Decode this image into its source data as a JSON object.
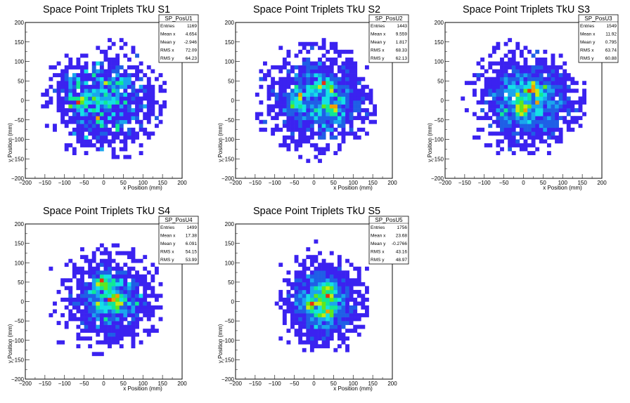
{
  "chart_data": [
    {
      "type": "heatmap",
      "title": "Space Point Triplets TkU S1",
      "xlabel": "x Position (mm)",
      "ylabel": "y Position (mm)",
      "xlim": [
        -200,
        200
      ],
      "ylim": [
        -200,
        200
      ],
      "xticks": [
        "−200",
        "−150",
        "−100",
        "−50",
        "0",
        "50",
        "100",
        "150",
        "200"
      ],
      "yticks": [
        "−200",
        "−150",
        "−100",
        "−50",
        "0",
        "50",
        "100",
        "150",
        "200"
      ],
      "stats": {
        "name": "SP_PosU1",
        "rows": [
          {
            "label": "Entries",
            "value": "1169"
          },
          {
            "label": "Mean x",
            "value": "4.654"
          },
          {
            "label": "Mean y",
            "value": "-2.946"
          },
          {
            "label": "RMS x",
            "value": "72.09"
          },
          {
            "label": "RMS y",
            "value": "64.23"
          }
        ]
      },
      "entries": 1169,
      "mean_x": 4.654,
      "mean_y": -2.946,
      "rms_x": 72.09,
      "rms_y": 64.23,
      "radius_mm": 160,
      "bin_mm": 10,
      "seed": 11,
      "hotspots": [
        [
          -75,
          50
        ],
        [
          40,
          50
        ],
        [
          -50,
          -5
        ],
        [
          -80,
          -5
        ]
      ]
    },
    {
      "type": "heatmap",
      "title": "Space Point Triplets TkU S2",
      "xlabel": "x Position (mm)",
      "ylabel": "y Position (mm)",
      "xlim": [
        -200,
        200
      ],
      "ylim": [
        -200,
        200
      ],
      "xticks": [
        "−200",
        "−150",
        "−100",
        "−50",
        "0",
        "50",
        "100",
        "150",
        "200"
      ],
      "yticks": [
        "−200",
        "−150",
        "−100",
        "−50",
        "0",
        "50",
        "100",
        "150",
        "200"
      ],
      "stats": {
        "name": "SP_PosU2",
        "rows": [
          {
            "label": "Entries",
            "value": "1443"
          },
          {
            "label": "Mean x",
            "value": "9.559"
          },
          {
            "label": "Mean y",
            "value": "1.817"
          },
          {
            "label": "RMS x",
            "value": "68.33"
          },
          {
            "label": "RMS y",
            "value": "62.13"
          }
        ]
      },
      "entries": 1443,
      "mean_x": 9.559,
      "mean_y": 1.817,
      "rms_x": 68.33,
      "rms_y": 62.13,
      "radius_mm": 160,
      "bin_mm": 10,
      "seed": 23,
      "hotspots": [
        [
          -40,
          -5
        ],
        [
          50,
          -20
        ],
        [
          20,
          40
        ]
      ]
    },
    {
      "type": "heatmap",
      "title": "Space Point Triplets TkU S3",
      "xlabel": "x Position (mm)",
      "ylabel": "y Position (mm)",
      "xlim": [
        -200,
        200
      ],
      "ylim": [
        -200,
        200
      ],
      "xticks": [
        "−200",
        "−150",
        "−100",
        "−50",
        "0",
        "50",
        "100",
        "150",
        "200"
      ],
      "yticks": [
        "−200",
        "−150",
        "−100",
        "−50",
        "0",
        "50",
        "100",
        "150",
        "200"
      ],
      "stats": {
        "name": "SP_PosU3",
        "rows": [
          {
            "label": "Entries",
            "value": "1549"
          },
          {
            "label": "Mean x",
            "value": "11.92"
          },
          {
            "label": "Mean y",
            "value": "0.795"
          },
          {
            "label": "RMS x",
            "value": "63.74"
          },
          {
            "label": "RMS y",
            "value": "60.88"
          }
        ]
      },
      "entries": 1549,
      "mean_x": 11.92,
      "mean_y": 0.795,
      "rms_x": 63.74,
      "rms_y": 60.88,
      "radius_mm": 160,
      "bin_mm": 10,
      "seed": 37,
      "hotspots": [
        [
          -5,
          -20
        ],
        [
          30,
          20
        ]
      ]
    },
    {
      "type": "heatmap",
      "title": "Space Point Triplets TkU S4",
      "xlabel": "x Position (mm)",
      "ylabel": "y Position (mm)",
      "xlim": [
        -200,
        200
      ],
      "ylim": [
        -200,
        200
      ],
      "xticks": [
        "−200",
        "−150",
        "−100",
        "−50",
        "0",
        "50",
        "100",
        "150",
        "200"
      ],
      "yticks": [
        "−200",
        "−150",
        "−100",
        "−50",
        "0",
        "50",
        "100",
        "150",
        "200"
      ],
      "stats": {
        "name": "SP_PosU4",
        "rows": [
          {
            "label": "Entries",
            "value": "1499"
          },
          {
            "label": "Mean x",
            "value": "17.38"
          },
          {
            "label": "Mean y",
            "value": "6.091"
          },
          {
            "label": "RMS x",
            "value": "54.15"
          },
          {
            "label": "RMS y",
            "value": "53.99"
          }
        ]
      },
      "entries": 1499,
      "mean_x": 17.38,
      "mean_y": 6.091,
      "rms_x": 54.15,
      "rms_y": 53.99,
      "radius_mm": 160,
      "bin_mm": 10,
      "seed": 41,
      "hotspots": [
        [
          0,
          50
        ],
        [
          30,
          5
        ]
      ]
    },
    {
      "type": "heatmap",
      "title": "Space Point Triplets TkU S5",
      "xlabel": "x Position (mm)",
      "ylabel": "y Position (mm)",
      "xlim": [
        -200,
        200
      ],
      "ylim": [
        -200,
        200
      ],
      "xticks": [
        "−200",
        "−150",
        "−100",
        "−50",
        "0",
        "50",
        "100",
        "150",
        "200"
      ],
      "yticks": [
        "−200",
        "−150",
        "−100",
        "−50",
        "0",
        "50",
        "100",
        "150",
        "200"
      ],
      "stats": {
        "name": "SP_PosU5",
        "rows": [
          {
            "label": "Entries",
            "value": "1756"
          },
          {
            "label": "Mean x",
            "value": "23.68"
          },
          {
            "label": "Mean y",
            "value": "-0.2766"
          },
          {
            "label": "RMS x",
            "value": "43.16"
          },
          {
            "label": "RMS y",
            "value": "48.97"
          }
        ]
      },
      "entries": 1756,
      "mean_x": 23.68,
      "mean_y": -0.2766,
      "rms_x": 43.16,
      "rms_y": 48.97,
      "radius_mm": 160,
      "bin_mm": 10,
      "seed": 53,
      "hotspots": [
        [
          30,
          30
        ],
        [
          -5,
          0
        ],
        [
          30,
          -35
        ]
      ]
    }
  ],
  "colors": {
    "palette": [
      "#3b22f0",
      "#1f5fe6",
      "#1aa6ee",
      "#14e0e6",
      "#10e896",
      "#5ee81e",
      "#c9e810",
      "#f0a000",
      "#e83010"
    ],
    "frame": "#000000",
    "background": "#ffffff"
  }
}
